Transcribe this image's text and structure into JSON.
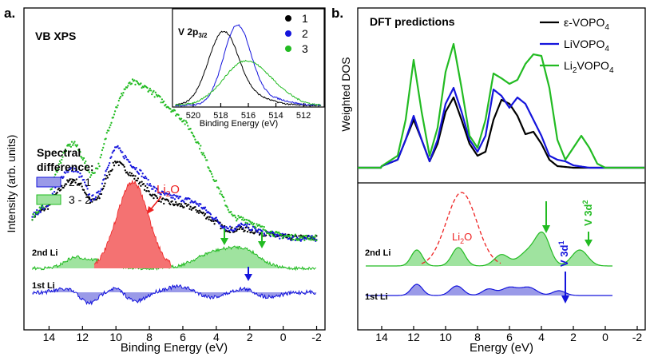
{
  "colors": {
    "black": "#000000",
    "blue": "#1414dc",
    "green": "#22bb22",
    "green_fill": "#9fe39f",
    "blue_fill": "#9a9ae8",
    "red": "#ee2222",
    "red_fill": "#f47272"
  },
  "chart_data": [
    {
      "type": "line",
      "panel_label": "a.",
      "title": "VB XPS",
      "xlabel": "Binding Energy (eV)",
      "ylabel": "Intensity (arb. units)",
      "xlim": [
        15.5,
        -2.5
      ],
      "x_ticks": [
        "14",
        "12",
        "10",
        "8",
        "6",
        "4",
        "2",
        "0",
        "-2"
      ],
      "spectral_difference": {
        "title_line1": "Spectral",
        "title_line2": "difference:",
        "legend": [
          {
            "label": "2 - 1",
            "color": "#9a9ae8"
          },
          {
            "label": "3 - 2",
            "color": "#9fe39f"
          }
        ],
        "li2o_label_main": "Li",
        "li2o_label_sub": "2",
        "li2o_label_end": "O",
        "row_labels": [
          "2nd Li",
          "1st Li"
        ]
      },
      "series": [
        {
          "name": "1",
          "color": "#000000",
          "x": [
            15,
            14,
            13.5,
            13,
            12.5,
            12,
            11.5,
            11,
            10.5,
            10,
            9.5,
            9,
            8.5,
            8,
            7.5,
            7,
            6.5,
            6,
            5.5,
            5,
            4.5,
            4,
            3.5,
            3,
            2.5,
            2,
            1.5,
            1,
            0.5,
            0,
            -0.5,
            -1,
            -1.5,
            -2
          ],
          "y": [
            12,
            18,
            25,
            30,
            32,
            28,
            20,
            22,
            34,
            42,
            38,
            34,
            30,
            25,
            22,
            20,
            19,
            18,
            17,
            15,
            12,
            9,
            6,
            5,
            6,
            5,
            4,
            3,
            2,
            1.5,
            1,
            1,
            1,
            1
          ]
        },
        {
          "name": "2",
          "color": "#1414dc",
          "x": [
            15,
            14,
            13.5,
            13,
            12.5,
            12,
            11.5,
            11,
            10.5,
            10,
            9.5,
            9,
            8.5,
            8,
            7.5,
            7,
            6.5,
            6,
            5.5,
            5,
            4.5,
            4,
            3.5,
            3,
            2.5,
            2,
            1.5,
            1,
            0.5,
            0,
            -0.5,
            -1,
            -1.5,
            -2
          ],
          "y": [
            13,
            20,
            30,
            37,
            38,
            33,
            22,
            25,
            40,
            50,
            45,
            40,
            36,
            30,
            26,
            24,
            23,
            22,
            21,
            19,
            15,
            11,
            7,
            6,
            8,
            7,
            5,
            4,
            3,
            2,
            1.5,
            1,
            1,
            1
          ]
        },
        {
          "name": "3",
          "color": "#22bb22",
          "x": [
            15,
            14,
            13.5,
            13,
            12.5,
            12,
            11.5,
            11,
            10.5,
            10,
            9.5,
            9,
            8.5,
            8,
            7.5,
            7,
            6.5,
            6,
            5.5,
            5,
            4.5,
            4,
            3.5,
            3,
            2.5,
            2,
            1.5,
            1,
            0.5,
            0,
            -0.5,
            -1,
            -1.5,
            -2
          ],
          "y": [
            12,
            22,
            38,
            48,
            52,
            44,
            34,
            40,
            58,
            70,
            80,
            84,
            82,
            80,
            76,
            72,
            68,
            64,
            58,
            50,
            40,
            30,
            20,
            12,
            11,
            10,
            7,
            5,
            3,
            2,
            1.5,
            1,
            1,
            1
          ]
        }
      ],
      "inset": {
        "title_main": "V 2p",
        "title_sub": "3/2",
        "xlabel": "Binding Energy (eV)",
        "xlim": [
          521.5,
          510.5
        ],
        "x_ticks": [
          "520",
          "518",
          "516",
          "514",
          "512"
        ],
        "legend": [
          {
            "label": "1",
            "color": "#000000"
          },
          {
            "label": "2",
            "color": "#1414dc"
          },
          {
            "label": "3",
            "color": "#22bb22"
          }
        ],
        "series": [
          {
            "name": "1",
            "center": 517.8,
            "width": 1.1
          },
          {
            "name": "2",
            "center": 516.8,
            "width": 1.0
          },
          {
            "name": "3",
            "center": 516.2,
            "width": 1.6
          }
        ]
      }
    },
    {
      "type": "line",
      "panel_label": "b.",
      "title": "DFT predictions",
      "xlabel": "Energy (eV)",
      "ylabel": "Weighted DOS",
      "xlim": [
        15.5,
        -2.5
      ],
      "x_ticks": [
        "14",
        "12",
        "10",
        "8",
        "6",
        "4",
        "2",
        "0",
        "-2"
      ],
      "legend": [
        {
          "label": "ε-VOPO",
          "sub": "4",
          "color": "#000000"
        },
        {
          "label": "LiVOPO",
          "sub": "4",
          "color": "#1414dc"
        },
        {
          "label": "Li",
          "sub": "2",
          "end": "VOPO",
          "sub2": "4",
          "color": "#22bb22"
        }
      ],
      "series": [
        {
          "name": "ε-VOPO4",
          "color": "#000000",
          "x": [
            14,
            13,
            12.5,
            12,
            11.5,
            11,
            10.5,
            10,
            9.5,
            9,
            8.5,
            8,
            7.5,
            7,
            6.5,
            6,
            5.5,
            5,
            4.5,
            4,
            3.5,
            3,
            2.5,
            2,
            1,
            0
          ],
          "y": [
            2,
            10,
            35,
            60,
            35,
            8,
            30,
            70,
            88,
            60,
            30,
            15,
            20,
            60,
            85,
            80,
            65,
            42,
            45,
            30,
            10,
            2,
            1,
            0,
            0,
            0
          ]
        },
        {
          "name": "LiVOPO4",
          "color": "#1414dc",
          "x": [
            14,
            13,
            12.5,
            12,
            11.5,
            11,
            10.5,
            10,
            9.5,
            9,
            8.5,
            8,
            7.5,
            7,
            6.5,
            6,
            5.5,
            5,
            4.5,
            4,
            3.5,
            3,
            2.5,
            2,
            1,
            0
          ],
          "y": [
            2,
            10,
            35,
            65,
            35,
            8,
            35,
            80,
            100,
            70,
            35,
            20,
            40,
            98,
            90,
            75,
            88,
            80,
            60,
            40,
            15,
            10,
            8,
            3,
            0,
            0
          ]
        },
        {
          "name": "Li2VOPO4",
          "color": "#22bb22",
          "x": [
            14,
            13,
            12.5,
            12,
            11.5,
            11,
            10.5,
            10,
            9.5,
            9,
            8.5,
            8,
            7.5,
            7,
            6.5,
            6,
            5.5,
            5,
            4.5,
            4,
            3.5,
            3,
            2.5,
            2,
            1.5,
            1,
            0.5,
            0
          ],
          "y": [
            2,
            15,
            60,
            135,
            70,
            15,
            50,
            120,
            155,
            100,
            40,
            25,
            60,
            118,
            112,
            105,
            110,
            130,
            142,
            140,
            100,
            35,
            10,
            25,
            40,
            25,
            5,
            0
          ]
        }
      ],
      "bottom": {
        "row_labels": [
          "2nd Li",
          "1st Li"
        ],
        "li2o_label_main": "Li",
        "li2o_label_sub": "2",
        "li2o_label_end": "O",
        "v3d1_main": "V 3d",
        "v3d1_sup": "1",
        "v3d2_main": "V 3d",
        "v3d2_sup": "2"
      }
    }
  ]
}
